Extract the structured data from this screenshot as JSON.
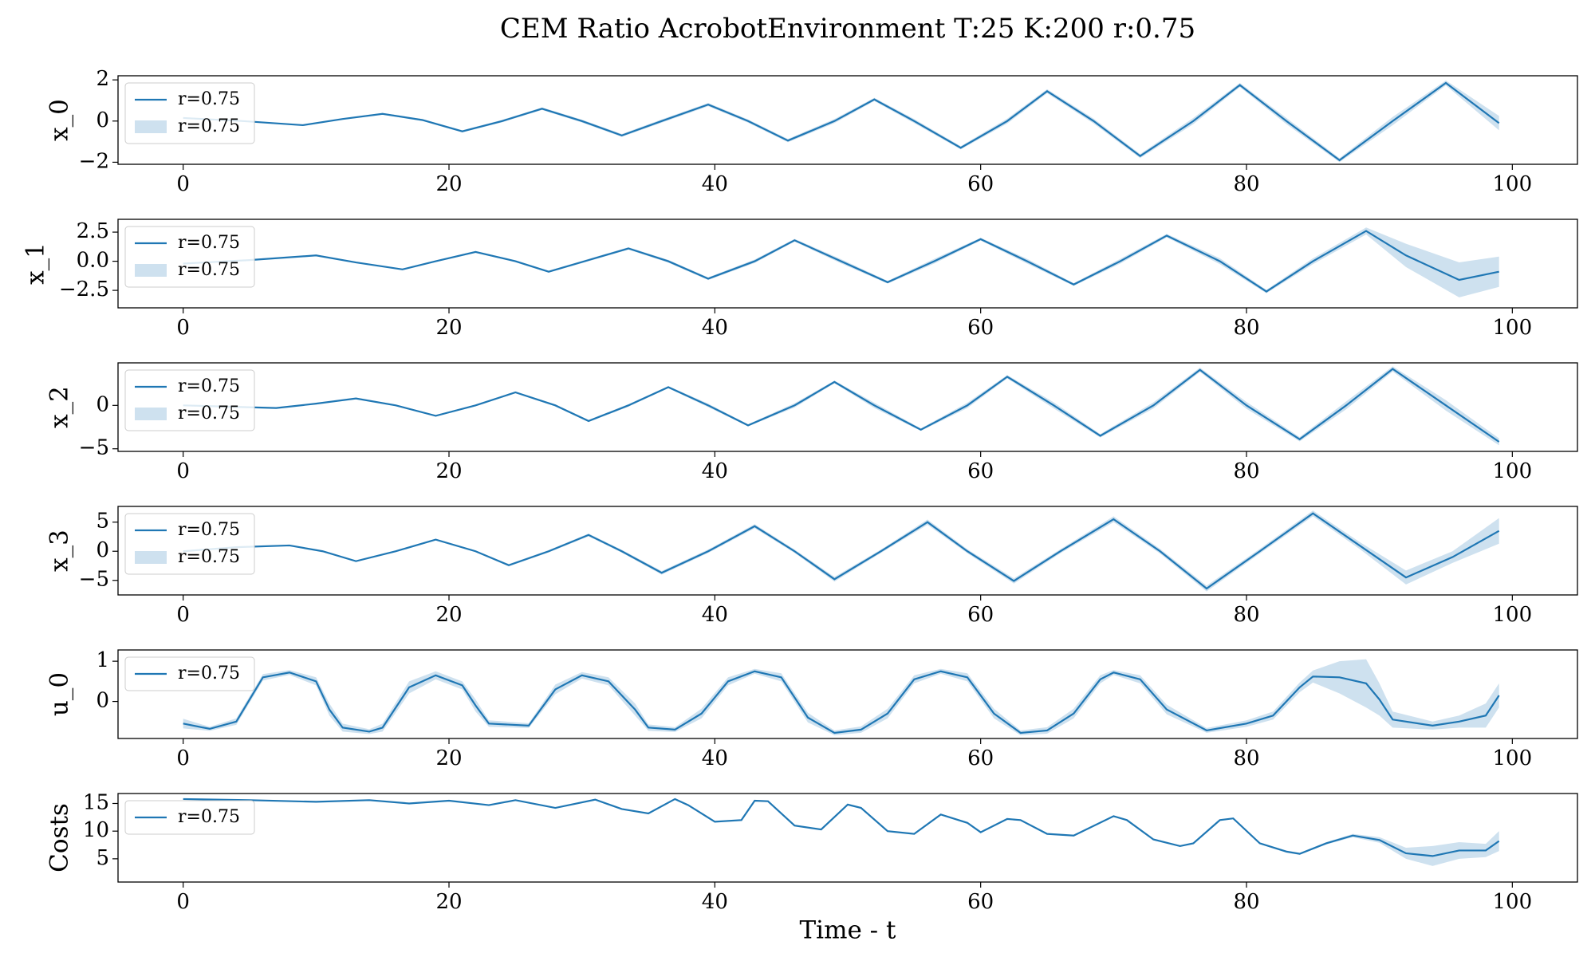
{
  "title": "CEM Ratio AcrobotEnvironment T:25 K:200 r:0.75",
  "chart_data": [
    {
      "type": "line",
      "ylabel": "x_0",
      "band_label": "r=0.75",
      "legend": "upper left",
      "x": [
        0,
        4.5,
        9,
        12,
        15,
        18,
        21,
        24,
        27,
        30,
        33,
        36,
        39.5,
        42.5,
        45.5,
        49,
        52,
        55,
        58.5,
        62,
        65,
        68.5,
        72,
        76,
        79.5,
        83,
        87,
        91,
        95,
        99
      ],
      "series": [
        {
          "name": "r=0.75",
          "color": "#1f77b4",
          "values": [
            0.15,
            0,
            -0.2,
            0.1,
            0.35,
            0.05,
            -0.5,
            0,
            0.6,
            0,
            -0.7,
            0,
            0.8,
            0,
            -0.95,
            0,
            1.05,
            0,
            -1.3,
            0,
            1.45,
            0,
            -1.7,
            0,
            1.75,
            0,
            -1.9,
            0,
            1.85,
            -0.1
          ],
          "errors": [
            0.03,
            0.03,
            0.03,
            0.03,
            0.04,
            0.05,
            0.05,
            0.06,
            0.06,
            0.07,
            0.07,
            0.08,
            0.08,
            0.08,
            0.08,
            0.1,
            0.08,
            0.1,
            0.08,
            0.12,
            0.1,
            0.12,
            0.1,
            0.15,
            0.1,
            0.15,
            0.1,
            0.2,
            0.12,
            0.35
          ]
        }
      ],
      "xlim": [
        -4.9,
        104.9
      ],
      "xticks": [
        0,
        20,
        40,
        60,
        80,
        100
      ],
      "ylim": [
        -2.1,
        2.2
      ],
      "yticks": [
        {
          "value": -2,
          "label": "−2"
        },
        0,
        2
      ]
    },
    {
      "type": "line",
      "ylabel": "x_1",
      "band_label": "r=0.75",
      "legend": "upper left",
      "x": [
        0,
        5,
        10,
        13,
        16.5,
        19,
        22,
        25,
        27.5,
        30.5,
        33.5,
        36.5,
        39.5,
        43,
        46,
        49.5,
        53,
        56.5,
        60,
        63.5,
        67,
        70.5,
        74,
        78,
        81.5,
        85,
        89,
        92,
        96,
        99
      ],
      "series": [
        {
          "name": "r=0.75",
          "color": "#1f77b4",
          "values": [
            -0.2,
            0.1,
            0.5,
            -0.1,
            -0.7,
            0,
            0.8,
            0,
            -0.9,
            0.1,
            1.1,
            0,
            -1.5,
            0,
            1.8,
            0,
            -1.8,
            0,
            1.9,
            0,
            -2.0,
            0,
            2.2,
            0,
            -2.6,
            0,
            2.6,
            0.5,
            -1.6,
            -0.9
          ],
          "errors": [
            0.05,
            0.05,
            0.05,
            0.05,
            0.05,
            0.06,
            0.06,
            0.08,
            0.08,
            0.1,
            0.1,
            0.12,
            0.12,
            0.15,
            0.12,
            0.18,
            0.12,
            0.2,
            0.12,
            0.2,
            0.12,
            0.2,
            0.15,
            0.25,
            0.15,
            0.25,
            0.3,
            1.0,
            1.5,
            1.3
          ]
        }
      ],
      "xlim": [
        -4.9,
        104.9
      ],
      "xticks": [
        0,
        20,
        40,
        60,
        80,
        100
      ],
      "ylim": [
        -4.0,
        3.6
      ],
      "yticks": [
        {
          "value": -2.5,
          "label": "−2.5"
        },
        {
          "value": 0,
          "label": "0.0"
        },
        2.5
      ]
    },
    {
      "type": "line",
      "ylabel": "x_2",
      "band_label": "r=0.75",
      "legend": "upper left",
      "x": [
        0,
        7,
        10,
        13,
        16,
        19,
        22,
        25,
        28,
        30.5,
        33.5,
        36.5,
        39.5,
        42.5,
        46,
        49,
        52,
        55.5,
        59,
        62,
        65.5,
        69,
        73,
        76.5,
        80,
        84,
        87.5,
        91,
        95,
        99
      ],
      "series": [
        {
          "name": "r=0.75",
          "color": "#1f77b4",
          "values": [
            0,
            -0.3,
            0.2,
            0.8,
            0,
            -1.2,
            0,
            1.5,
            0,
            -1.8,
            0,
            2.1,
            0,
            -2.3,
            0,
            2.7,
            0,
            -2.8,
            0,
            3.3,
            0,
            -3.5,
            0,
            4.1,
            0,
            -3.9,
            0,
            4.2,
            0,
            -4.2
          ],
          "errors": [
            0.05,
            0.05,
            0.05,
            0.05,
            0.08,
            0.08,
            0.1,
            0.1,
            0.12,
            0.12,
            0.15,
            0.12,
            0.2,
            0.12,
            0.25,
            0.15,
            0.3,
            0.15,
            0.3,
            0.2,
            0.35,
            0.2,
            0.35,
            0.25,
            0.4,
            0.25,
            0.45,
            0.3,
            0.6,
            0.4
          ]
        }
      ],
      "xlim": [
        -4.9,
        104.9
      ],
      "xticks": [
        0,
        20,
        40,
        60,
        80,
        100
      ],
      "ylim": [
        -5.3,
        4.9
      ],
      "yticks": [
        {
          "value": -5,
          "label": "−5"
        },
        0
      ]
    },
    {
      "type": "line",
      "ylabel": "x_3",
      "band_label": "r=0.75",
      "legend": "upper left",
      "x": [
        0,
        4,
        8,
        10.5,
        13,
        16,
        19,
        22,
        24.5,
        27.5,
        30.5,
        33,
        36,
        39.5,
        43,
        46,
        49,
        52.5,
        56,
        59,
        62.5,
        66,
        70,
        73.5,
        77,
        81,
        85,
        88.5,
        92,
        95.5,
        99
      ],
      "series": [
        {
          "name": "r=0.75",
          "color": "#1f77b4",
          "values": [
            0,
            0.7,
            1.0,
            0,
            -1.7,
            0,
            2.0,
            0,
            -2.4,
            0,
            2.8,
            0,
            -3.7,
            0,
            4.3,
            0,
            -4.8,
            0,
            5.0,
            0,
            -5.1,
            0,
            5.5,
            0,
            -6.4,
            0,
            6.5,
            1,
            -4.5,
            -1,
            3.5
          ],
          "errors": [
            0.05,
            0.05,
            0.05,
            0.08,
            0.1,
            0.12,
            0.15,
            0.15,
            0.2,
            0.2,
            0.25,
            0.25,
            0.3,
            0.3,
            0.35,
            0.3,
            0.4,
            0.3,
            0.45,
            0.35,
            0.45,
            0.35,
            0.5,
            0.4,
            0.5,
            0.4,
            0.5,
            0.6,
            1.2,
            1.0,
            2.2
          ]
        }
      ],
      "xlim": [
        -4.9,
        104.9
      ],
      "xticks": [
        0,
        20,
        40,
        60,
        80,
        100
      ],
      "ylim": [
        -7.5,
        7.7
      ],
      "yticks": [
        {
          "value": -5,
          "label": "−5"
        },
        0,
        5
      ]
    },
    {
      "type": "line",
      "ylabel": "u_0",
      "legend": "upper left",
      "x": [
        0,
        2,
        4,
        6,
        8,
        10,
        11,
        12,
        14,
        15,
        17,
        19,
        21,
        22,
        23,
        26,
        28,
        30,
        32,
        34,
        35,
        37,
        39,
        41,
        43,
        45,
        47,
        49,
        51,
        53,
        55,
        57,
        59,
        61,
        63,
        65,
        67,
        69,
        70,
        72,
        74,
        77,
        80,
        82,
        84,
        85,
        87,
        89,
        90,
        91,
        94,
        96,
        98,
        99
      ],
      "series": [
        {
          "name": "r=0.75",
          "color": "#1f77b4",
          "values": [
            -0.55,
            -0.68,
            -0.5,
            0.6,
            0.72,
            0.5,
            -0.2,
            -0.65,
            -0.75,
            -0.65,
            0.35,
            0.65,
            0.4,
            -0.1,
            -0.55,
            -0.6,
            0.3,
            0.65,
            0.5,
            -0.2,
            -0.65,
            -0.7,
            -0.3,
            0.5,
            0.75,
            0.6,
            -0.4,
            -0.78,
            -0.7,
            -0.3,
            0.55,
            0.75,
            0.6,
            -0.3,
            -0.78,
            -0.72,
            -0.3,
            0.55,
            0.72,
            0.55,
            -0.2,
            -0.72,
            -0.55,
            -0.35,
            0.35,
            0.62,
            0.6,
            0.45,
            0.05,
            -0.45,
            -0.6,
            -0.5,
            -0.35,
            0.15
          ],
          "errors": [
            0.12,
            0.05,
            0.08,
            0.08,
            0.06,
            0.1,
            0.15,
            0.1,
            0.06,
            0.1,
            0.15,
            0.1,
            0.1,
            0.15,
            0.08,
            0.06,
            0.12,
            0.08,
            0.1,
            0.15,
            0.08,
            0.06,
            0.12,
            0.1,
            0.06,
            0.1,
            0.12,
            0.06,
            0.08,
            0.12,
            0.1,
            0.06,
            0.1,
            0.12,
            0.06,
            0.08,
            0.12,
            0.1,
            0.06,
            0.1,
            0.12,
            0.06,
            0.08,
            0.1,
            0.12,
            0.15,
            0.4,
            0.6,
            0.4,
            0.2,
            0.1,
            0.15,
            0.3,
            0.3
          ]
        }
      ],
      "xlim": [
        -4.9,
        104.9
      ],
      "xticks": [
        0,
        20,
        40,
        60,
        80,
        100
      ],
      "ylim": [
        -0.92,
        1.28
      ],
      "yticks": [
        0,
        1
      ]
    },
    {
      "type": "line",
      "ylabel": "Costs",
      "xlabel": "Time - t",
      "legend": "upper left",
      "x": [
        0,
        5,
        10,
        14,
        17,
        20,
        23,
        25,
        28,
        31,
        33,
        35,
        37,
        38,
        40,
        42,
        43,
        44,
        46,
        48,
        50,
        51,
        53,
        55,
        57,
        59,
        60,
        62,
        63,
        65,
        67,
        70,
        71,
        73,
        75,
        76,
        78,
        79,
        81,
        83,
        84,
        86,
        88,
        90,
        92,
        94,
        96,
        98,
        99
      ],
      "series": [
        {
          "name": "r=0.75",
          "color": "#1f77b4",
          "values": [
            15.8,
            15.6,
            15.3,
            15.6,
            15,
            15.5,
            14.7,
            15.6,
            14.2,
            15.7,
            14,
            13.2,
            15.8,
            14.7,
            11.7,
            12,
            15.5,
            15.4,
            11,
            10.3,
            14.8,
            14.2,
            10,
            9.5,
            13,
            11.5,
            9.8,
            12.2,
            12,
            9.5,
            9.2,
            12.7,
            12,
            8.5,
            7.3,
            7.8,
            12,
            12.3,
            7.8,
            6.3,
            5.9,
            7.8,
            9.2,
            8.4,
            6,
            5.5,
            6.5,
            6.5,
            8.2
          ],
          "errors": [
            0.1,
            0.1,
            0.1,
            0.1,
            0.1,
            0.1,
            0.1,
            0.1,
            0.1,
            0.1,
            0.1,
            0.1,
            0.1,
            0.1,
            0.1,
            0.1,
            0.1,
            0.1,
            0.1,
            0.1,
            0.1,
            0.1,
            0.1,
            0.1,
            0.1,
            0.1,
            0.1,
            0.1,
            0.1,
            0.1,
            0.1,
            0.1,
            0.1,
            0.1,
            0.1,
            0.1,
            0.1,
            0.1,
            0.15,
            0.2,
            0.2,
            0.2,
            0.3,
            0.5,
            1.0,
            1.8,
            1.5,
            1.2,
            1.8
          ]
        }
      ],
      "xlim": [
        -4.9,
        104.9
      ],
      "xticks": [
        0,
        20,
        40,
        60,
        80,
        100
      ],
      "ylim": [
        0.8,
        16.8
      ],
      "yticks": [
        5,
        10,
        15
      ]
    }
  ]
}
